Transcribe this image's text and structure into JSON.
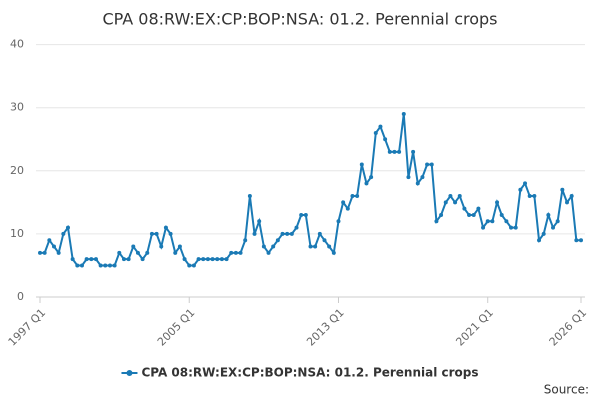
{
  "chart_data": {
    "type": "line",
    "title": "CPA 08:RW:EX:CP:BOP:NSA: 01.2. Perennial crops",
    "source": "Source:",
    "categories": [
      "1997 Q1",
      null,
      null,
      null,
      null,
      null,
      null,
      null,
      null,
      null,
      null,
      null,
      null,
      null,
      null,
      null,
      null,
      null,
      null,
      null,
      null,
      null,
      null,
      null,
      null,
      null,
      null,
      null,
      null,
      null,
      null,
      null,
      "2005 Q1",
      null,
      null,
      null,
      null,
      null,
      null,
      null,
      null,
      null,
      null,
      null,
      null,
      null,
      null,
      null,
      null,
      null,
      null,
      null,
      null,
      null,
      null,
      null,
      null,
      null,
      null,
      null,
      null,
      null,
      null,
      null,
      "2013 Q1",
      null,
      null,
      null,
      null,
      null,
      null,
      null,
      null,
      null,
      null,
      null,
      null,
      null,
      null,
      null,
      null,
      null,
      null,
      null,
      null,
      null,
      null,
      null,
      null,
      null,
      null,
      null,
      null,
      null,
      null,
      null,
      "2021 Q1",
      null,
      null,
      null,
      null,
      null,
      null,
      null,
      null,
      null,
      null,
      null,
      null,
      null,
      null,
      null,
      null,
      null,
      null,
      null,
      "2026 Q1"
    ],
    "series": [
      {
        "name": "CPA 08:RW:EX:CP:BOP:NSA: 01.2. Perennial crops",
        "color": "#1a7ab5",
        "values": [
          7,
          7,
          9,
          8,
          7,
          10,
          11,
          6,
          5,
          5,
          6,
          6,
          6,
          5,
          5,
          5,
          5,
          7,
          6,
          6,
          8,
          7,
          6,
          7,
          10,
          10,
          8,
          11,
          10,
          7,
          8,
          6,
          5,
          5,
          6,
          6,
          6,
          6,
          6,
          6,
          6,
          7,
          7,
          7,
          9,
          16,
          10,
          12,
          8,
          7,
          8,
          9,
          10,
          10,
          10,
          11,
          13,
          13,
          8,
          8,
          10,
          9,
          8,
          7,
          12,
          15,
          14,
          16,
          16,
          21,
          18,
          19,
          26,
          27,
          25,
          23,
          23,
          23,
          29,
          19,
          23,
          18,
          19,
          21,
          21,
          12,
          13,
          15,
          16,
          15,
          16,
          14,
          13,
          13,
          14,
          11,
          12,
          12,
          15,
          13,
          12,
          11,
          11,
          17,
          18,
          16,
          16,
          9,
          10,
          13,
          11,
          12,
          17,
          15,
          16,
          9,
          9
        ]
      }
    ],
    "ylim": [
      0,
      42
    ],
    "yticks": [
      0,
      10,
      20,
      30,
      40
    ],
    "grid": true
  }
}
